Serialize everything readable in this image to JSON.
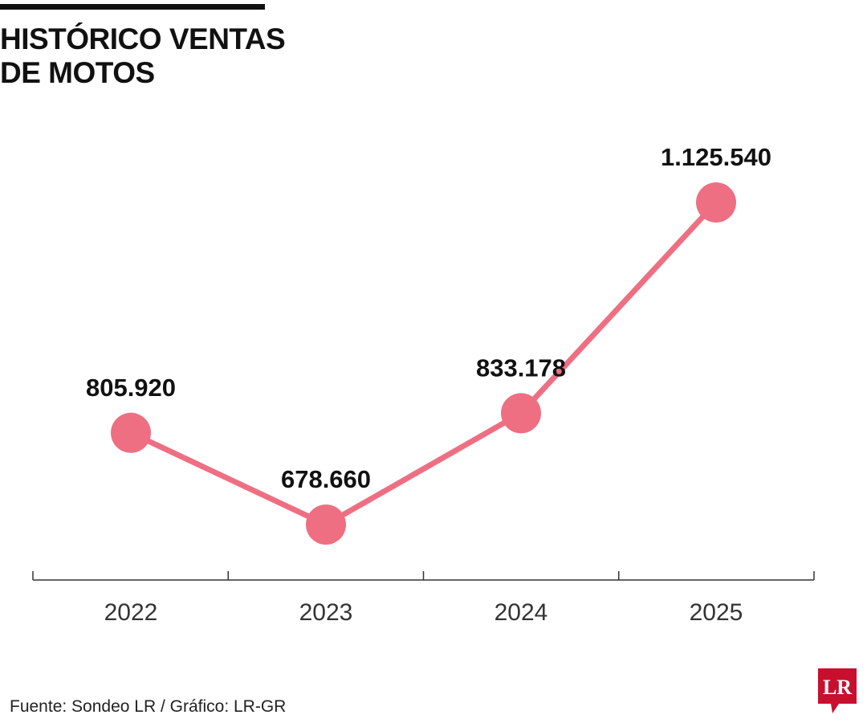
{
  "header": {
    "title_line1": "HISTÓRICO VENTAS",
    "title_line2": "DE MOTOS"
  },
  "footer": {
    "source": "Fuente: Sondeo LR / Gráfico: LR-GR",
    "logo_text": "LR"
  },
  "colors": {
    "series": "#EE6F82",
    "axis": "#333333",
    "logo": "#C8102E"
  },
  "chart_data": {
    "type": "line",
    "title": "HISTÓRICO VENTAS DE MOTOS",
    "xlabel": "",
    "ylabel": "",
    "grid": false,
    "legend": "none",
    "categories": [
      "2022",
      "2023",
      "2024",
      "2025"
    ],
    "series": [
      {
        "values": [
          805920,
          678660,
          833178,
          1125540
        ],
        "labels": [
          "805.920",
          "678.660",
          "833.178",
          "1.125.540"
        ]
      }
    ]
  }
}
